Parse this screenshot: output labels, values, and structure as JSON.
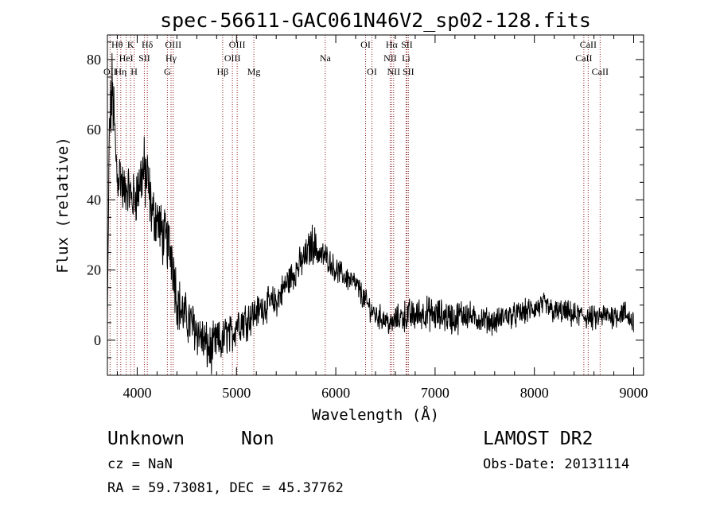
{
  "chart_data": {
    "type": "line",
    "title": "spec-56611-GAC061N46V2_sp02-128.fits",
    "xlabel": "Wavelength (Å)",
    "ylabel": "Flux (relative)",
    "xlim": [
      3700,
      9100
    ],
    "ylim": [
      -10,
      87
    ],
    "x_ticks": [
      4000,
      5000,
      6000,
      7000,
      8000,
      9000
    ],
    "x_tick_labels": [
      "4000",
      "5000",
      "6000",
      "7000",
      "8000",
      "9000"
    ],
    "y_ticks": [
      0,
      20,
      40,
      60,
      80
    ],
    "y_tick_labels": [
      "0",
      "20",
      "40",
      "60",
      "80"
    ],
    "grid": false,
    "line_color": "#000000",
    "marker_color": "#8b1a1a",
    "spectrum_envelope": {
      "x": [
        3700,
        3720,
        3750,
        3780,
        3800,
        3830,
        3860,
        3900,
        3950,
        4000,
        4050,
        4100,
        4150,
        4200,
        4250,
        4300,
        4350,
        4400,
        4450,
        4500,
        4600,
        4700,
        4750,
        4800,
        4850,
        4900,
        4950,
        5000,
        5100,
        5200,
        5300,
        5400,
        5500,
        5600,
        5700,
        5750,
        5780,
        5800,
        5850,
        5900,
        6000,
        6100,
        6200,
        6300,
        6400,
        6500,
        6560,
        6600,
        6700,
        6800,
        6900,
        7000,
        7100,
        7200,
        7300,
        7400,
        7500,
        7600,
        7700,
        7800,
        7900,
        8000,
        8100,
        8200,
        8300,
        8400,
        8500,
        8600,
        8700,
        8800,
        8900,
        9000
      ],
      "y": [
        5,
        60,
        72,
        55,
        46,
        48,
        42,
        44,
        40,
        42,
        48,
        46,
        36,
        35,
        30,
        28,
        25,
        12,
        8,
        6,
        3,
        -2,
        -3,
        0,
        -1,
        2,
        1,
        5,
        6,
        8,
        10,
        11,
        16,
        20,
        24,
        27,
        28,
        26,
        24,
        24,
        20,
        18,
        16,
        11,
        7,
        6,
        4,
        6,
        7,
        7,
        8,
        7,
        7,
        6,
        8,
        6,
        6,
        5,
        7,
        7,
        8,
        9,
        10,
        8,
        8,
        7,
        7,
        6,
        7,
        7,
        8,
        5
      ],
      "noise_amplitude": [
        1,
        8,
        10,
        9,
        7,
        7,
        6,
        6,
        6,
        7,
        9,
        9,
        7,
        7,
        7,
        7,
        8,
        7,
        6,
        6,
        6,
        6,
        6,
        5,
        5,
        5,
        5,
        5,
        5,
        4,
        4,
        4,
        4,
        4,
        4,
        5,
        5,
        4,
        4,
        3,
        3,
        3,
        3,
        3,
        3,
        3,
        3,
        3,
        4,
        4,
        4,
        4,
        4,
        4,
        4,
        3,
        3,
        3,
        3,
        3,
        3,
        3,
        3,
        3,
        3,
        3,
        3,
        3,
        3,
        3,
        3,
        3
      ]
    },
    "line_markers": [
      {
        "wavelength": 3727,
        "label": "OII",
        "row": 2
      },
      {
        "wavelength": 3798,
        "label": "Hθ",
        "row": 0
      },
      {
        "wavelength": 3835,
        "label": "Hη",
        "row": 2
      },
      {
        "wavelength": 3889,
        "label": "HeI",
        "row": 1
      },
      {
        "wavelength": 3934,
        "label": "K",
        "row": 0
      },
      {
        "wavelength": 3969,
        "label": "H",
        "row": 2
      },
      {
        "wavelength": 4072,
        "label": "SII",
        "row": 1
      },
      {
        "wavelength": 4102,
        "label": "Hδ",
        "row": 0
      },
      {
        "wavelength": 4304,
        "label": "G",
        "row": 2
      },
      {
        "wavelength": 4341,
        "label": "Hγ",
        "row": 1
      },
      {
        "wavelength": 4363,
        "label": "OIII",
        "row": 0
      },
      {
        "wavelength": 4861,
        "label": "Hβ",
        "row": 2
      },
      {
        "wavelength": 4959,
        "label": "OIII",
        "row": 1
      },
      {
        "wavelength": 5007,
        "label": "OIII",
        "row": 0
      },
      {
        "wavelength": 5175,
        "label": "Mg",
        "row": 2
      },
      {
        "wavelength": 5894,
        "label": "Na",
        "row": 1
      },
      {
        "wavelength": 6300,
        "label": "OI",
        "row": 0
      },
      {
        "wavelength": 6364,
        "label": "OI",
        "row": 2
      },
      {
        "wavelength": 6548,
        "label": "NII",
        "row": 1
      },
      {
        "wavelength": 6563,
        "label": "Hα",
        "row": 0
      },
      {
        "wavelength": 6583,
        "label": "NII",
        "row": 2
      },
      {
        "wavelength": 6708,
        "label": "Li",
        "row": 1
      },
      {
        "wavelength": 6716,
        "label": "SII",
        "row": 0
      },
      {
        "wavelength": 6731,
        "label": "SII",
        "row": 2
      },
      {
        "wavelength": 8498,
        "label": "CaII",
        "row": 1
      },
      {
        "wavelength": 8542,
        "label": "CaII",
        "row": 0
      },
      {
        "wavelength": 8662,
        "label": "CaII",
        "row": 2
      }
    ]
  },
  "info": {
    "class_label": "Unknown",
    "subclass_label": "Non",
    "survey_label": "LAMOST DR2",
    "cz_text": "cz = NaN",
    "obs_date_text": "Obs-Date: 20131114",
    "coords_text": "RA =  59.73081, DEC =  45.37762"
  }
}
